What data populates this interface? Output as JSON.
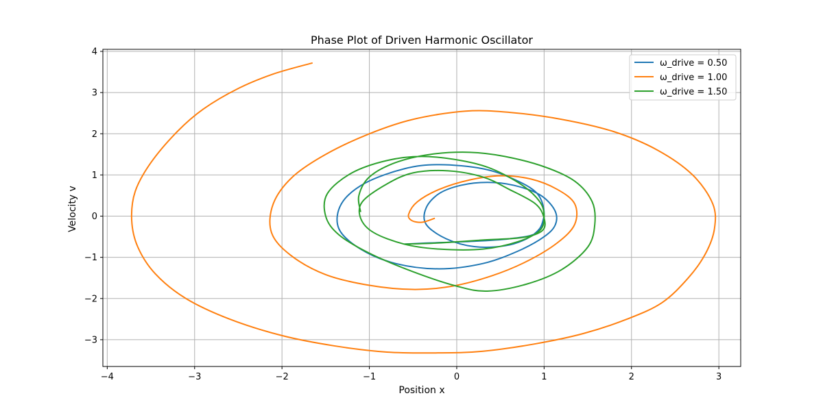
{
  "chart_data": {
    "type": "line",
    "title": "Phase Plot of Driven Harmonic Oscillator",
    "xlabel": "Position x",
    "ylabel": "Velocity v",
    "xlim": [
      -4.05,
      3.25
    ],
    "ylim": [
      -3.65,
      4.05
    ],
    "xticks": [
      -4,
      -3,
      -2,
      -1,
      0,
      1,
      2,
      3
    ],
    "yticks": [
      -3,
      -2,
      -1,
      0,
      1,
      2,
      3,
      4
    ],
    "xtick_labels": [
      "−4",
      "−3",
      "−2",
      "−1",
      "0",
      "1",
      "2",
      "3"
    ],
    "ytick_labels": [
      "−3",
      "−2",
      "−1",
      "0",
      "1",
      "2",
      "3",
      "4"
    ],
    "grid": true,
    "legend_position": "top-right",
    "series": [
      {
        "name": "ω_drive = 0.50",
        "color": "#1f77b4",
        "points": [
          [
            1.0,
            0.0
          ],
          [
            0.95,
            -0.3
          ],
          [
            0.8,
            -0.55
          ],
          [
            0.55,
            -0.72
          ],
          [
            0.2,
            -0.74
          ],
          [
            -0.12,
            -0.55
          ],
          [
            -0.35,
            -0.2
          ],
          [
            -0.35,
            0.2
          ],
          [
            -0.2,
            0.55
          ],
          [
            0.05,
            0.75
          ],
          [
            0.35,
            0.82
          ],
          [
            0.65,
            0.75
          ],
          [
            0.95,
            0.52
          ],
          [
            1.12,
            0.15
          ],
          [
            1.13,
            -0.2
          ],
          [
            1.0,
            -0.5
          ],
          [
            0.7,
            -0.85
          ],
          [
            0.3,
            -1.15
          ],
          [
            -0.2,
            -1.28
          ],
          [
            -0.7,
            -1.15
          ],
          [
            -1.1,
            -0.8
          ],
          [
            -1.35,
            -0.3
          ],
          [
            -1.32,
            0.3
          ],
          [
            -1.05,
            0.8
          ],
          [
            -0.6,
            1.15
          ],
          [
            -0.2,
            1.25
          ],
          [
            0.3,
            1.15
          ],
          [
            0.65,
            0.9
          ],
          [
            0.92,
            0.55
          ],
          [
            1.0,
            0.05
          ],
          [
            0.92,
            -0.4
          ],
          [
            0.6,
            -0.55
          ],
          [
            0.1,
            -0.62
          ],
          [
            -0.3,
            -0.65
          ],
          [
            -0.6,
            -0.68
          ]
        ]
      },
      {
        "name": "ω_drive = 1.00",
        "color": "#ff7f0e",
        "points": [
          [
            -0.25,
            -0.05
          ],
          [
            -0.4,
            -0.15
          ],
          [
            -0.52,
            -0.1
          ],
          [
            -0.55,
            0.05
          ],
          [
            -0.45,
            0.35
          ],
          [
            -0.2,
            0.65
          ],
          [
            0.15,
            0.88
          ],
          [
            0.5,
            0.98
          ],
          [
            0.85,
            0.9
          ],
          [
            1.15,
            0.65
          ],
          [
            1.35,
            0.3
          ],
          [
            1.35,
            -0.2
          ],
          [
            1.15,
            -0.65
          ],
          [
            0.8,
            -1.1
          ],
          [
            0.4,
            -1.45
          ],
          [
            -0.05,
            -1.7
          ],
          [
            -0.5,
            -1.78
          ],
          [
            -1.0,
            -1.68
          ],
          [
            -1.5,
            -1.42
          ],
          [
            -1.9,
            -0.95
          ],
          [
            -2.12,
            -0.4
          ],
          [
            -2.1,
            0.3
          ],
          [
            -1.88,
            0.95
          ],
          [
            -1.5,
            1.5
          ],
          [
            -1.0,
            2.0
          ],
          [
            -0.5,
            2.35
          ],
          [
            0.1,
            2.55
          ],
          [
            0.6,
            2.52
          ],
          [
            1.2,
            2.35
          ],
          [
            1.8,
            2.05
          ],
          [
            2.3,
            1.6
          ],
          [
            2.7,
            1.0
          ],
          [
            2.93,
            0.3
          ],
          [
            2.95,
            -0.3
          ],
          [
            2.85,
            -0.9
          ],
          [
            2.65,
            -1.5
          ],
          [
            2.35,
            -2.1
          ],
          [
            1.95,
            -2.5
          ],
          [
            1.45,
            -2.85
          ],
          [
            0.9,
            -3.1
          ],
          [
            0.3,
            -3.28
          ],
          [
            -0.2,
            -3.32
          ],
          [
            -0.8,
            -3.3
          ],
          [
            -1.4,
            -3.15
          ],
          [
            -2.0,
            -2.9
          ],
          [
            -2.6,
            -2.5
          ],
          [
            -3.1,
            -2.0
          ],
          [
            -3.45,
            -1.4
          ],
          [
            -3.65,
            -0.75
          ],
          [
            -3.72,
            -0.1
          ],
          [
            -3.68,
            0.6
          ],
          [
            -3.5,
            1.3
          ],
          [
            -3.2,
            2.05
          ],
          [
            -2.9,
            2.6
          ],
          [
            -2.5,
            3.1
          ],
          [
            -2.1,
            3.45
          ],
          [
            -1.65,
            3.72
          ]
        ]
      },
      {
        "name": "ω_drive = 1.50",
        "color": "#2ca02c",
        "points": [
          [
            -0.6,
            -0.68
          ],
          [
            -0.2,
            -0.65
          ],
          [
            0.3,
            -0.58
          ],
          [
            0.75,
            -0.52
          ],
          [
            0.98,
            -0.35
          ],
          [
            1.0,
            -0.05
          ],
          [
            0.9,
            0.3
          ],
          [
            0.6,
            0.65
          ],
          [
            0.3,
            0.95
          ],
          [
            -0.1,
            1.1
          ],
          [
            -0.5,
            1.05
          ],
          [
            -0.8,
            0.78
          ],
          [
            -1.08,
            0.35
          ],
          [
            -1.1,
            -0.05
          ],
          [
            -0.95,
            -0.4
          ],
          [
            -0.6,
            -0.68
          ],
          [
            -0.2,
            -0.8
          ],
          [
            0.3,
            -0.8
          ],
          [
            0.7,
            -0.62
          ],
          [
            0.95,
            -0.35
          ],
          [
            1.0,
            0.0
          ],
          [
            0.95,
            0.35
          ],
          [
            0.75,
            0.75
          ],
          [
            0.4,
            1.15
          ],
          [
            0.05,
            1.35
          ],
          [
            -0.4,
            1.45
          ],
          [
            -0.8,
            1.35
          ],
          [
            -1.2,
            1.05
          ],
          [
            -1.48,
            0.55
          ],
          [
            -1.5,
            0.0
          ],
          [
            -1.35,
            -0.45
          ],
          [
            -1.0,
            -0.9
          ],
          [
            -0.5,
            -1.35
          ],
          [
            0.0,
            -1.7
          ],
          [
            0.35,
            -1.82
          ],
          [
            0.8,
            -1.65
          ],
          [
            1.2,
            -1.3
          ],
          [
            1.5,
            -0.75
          ],
          [
            1.58,
            -0.2
          ],
          [
            1.55,
            0.35
          ],
          [
            1.35,
            0.85
          ],
          [
            1.0,
            1.2
          ],
          [
            0.55,
            1.45
          ],
          [
            0.15,
            1.55
          ],
          [
            -0.3,
            1.5
          ],
          [
            -0.7,
            1.3
          ],
          [
            -1.0,
            0.95
          ],
          [
            -1.12,
            0.5
          ],
          [
            -1.1,
            0.1
          ]
        ]
      }
    ]
  }
}
